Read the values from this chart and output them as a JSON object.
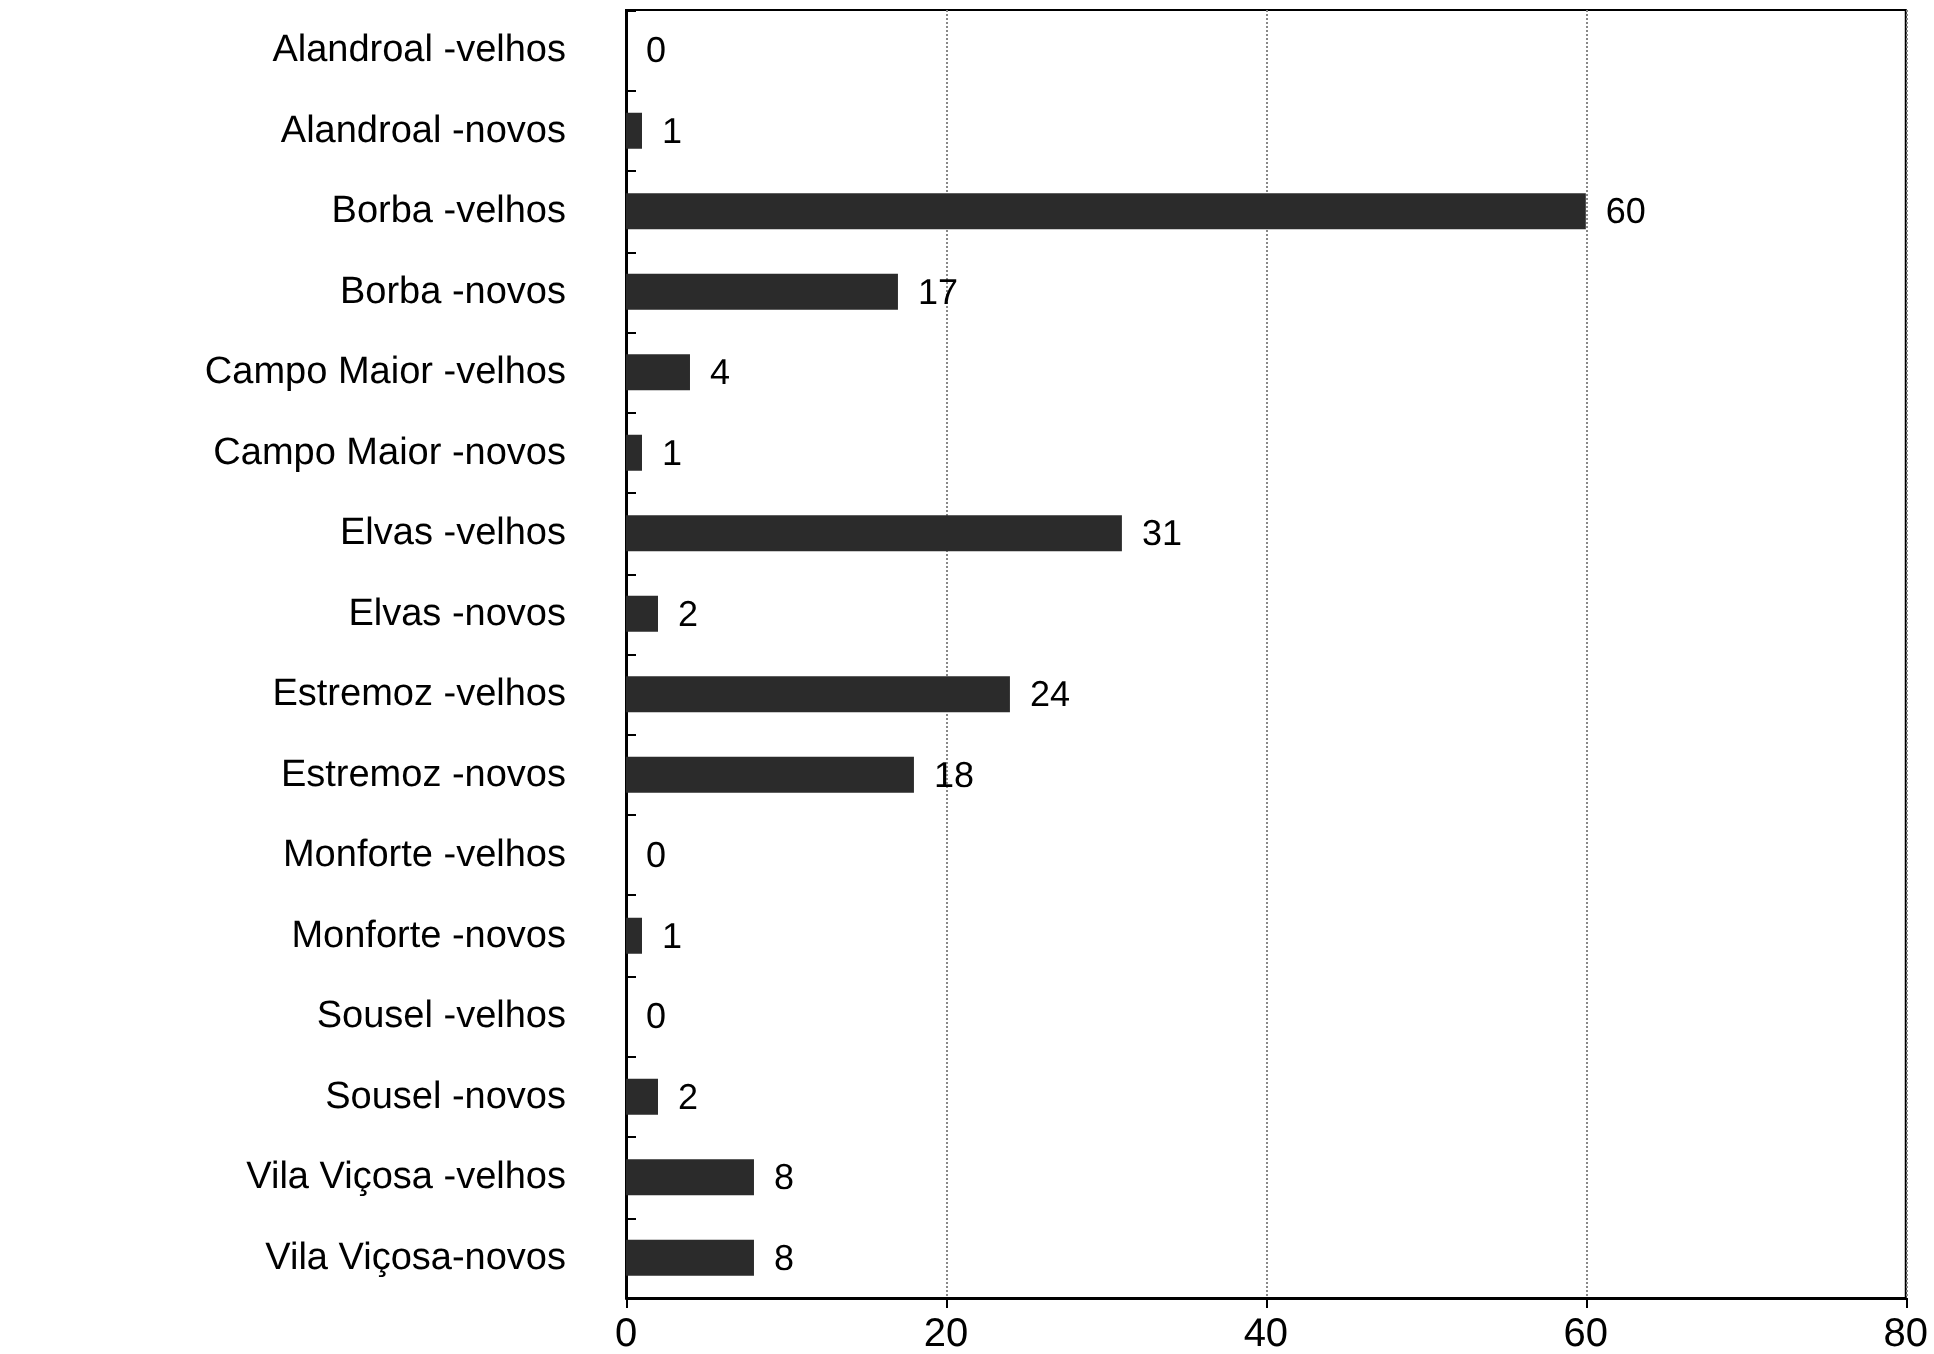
{
  "chart_data": {
    "type": "bar",
    "orientation": "horizontal",
    "categories": [
      "Alandroal -velhos",
      "Alandroal -novos",
      "Borba -velhos",
      "Borba -novos",
      "Campo Maior -velhos",
      "Campo Maior -novos",
      "Elvas -velhos",
      "Elvas -novos",
      "Estremoz -velhos",
      "Estremoz -novos",
      "Monforte -velhos",
      "Monforte -novos",
      "Sousel -velhos",
      "Sousel -novos",
      "Vila Viçosa -velhos",
      "Vila Viçosa-novos"
    ],
    "values": [
      0,
      1,
      60,
      17,
      4,
      1,
      31,
      2,
      24,
      18,
      0,
      1,
      0,
      2,
      8,
      8
    ],
    "color": "#2b2b2b",
    "xlim": [
      0,
      80
    ],
    "xticks": [
      0,
      20,
      40,
      60,
      80
    ],
    "grid": "x",
    "data_labels": true
  }
}
